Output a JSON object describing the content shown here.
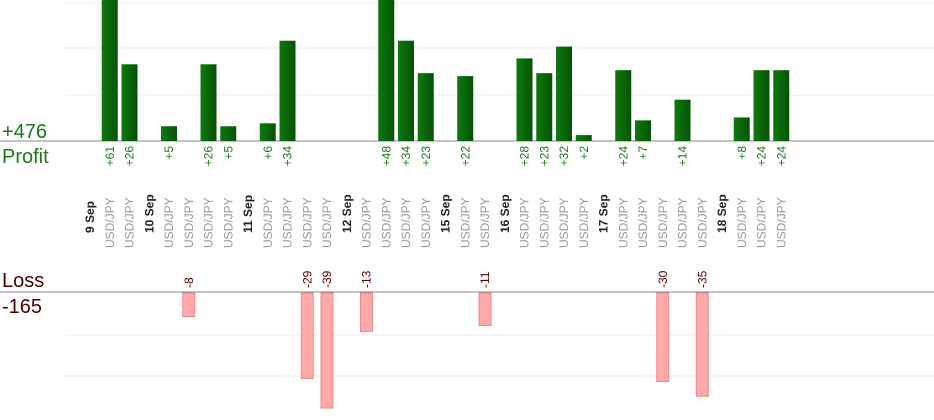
{
  "chart_data": {
    "type": "bar",
    "colors": {
      "profit": "#0a6a0a",
      "profit_text": "#1a7a1a",
      "loss": "#ffaaaa",
      "loss_edge": "#e88a8a",
      "loss_text": "#5a0000",
      "label_text": "#999999",
      "date_text": "#222222",
      "grid": "#eeeeee",
      "axis": "#888888"
    },
    "profit": {
      "title": "Profit",
      "total": "+476"
    },
    "loss": {
      "title": "Loss",
      "total": "-165"
    },
    "groups": [
      {
        "date": "9 Sep",
        "trades": [
          {
            "pair": "USD/JPY",
            "value": 61,
            "label": "+61"
          },
          {
            "pair": "USD/JPY",
            "value": 26,
            "label": "+26"
          }
        ]
      },
      {
        "date": "10 Sep",
        "trades": [
          {
            "pair": "USD/JPY",
            "value": 5,
            "label": "+5"
          },
          {
            "pair": "USD/JPY",
            "value": -8,
            "label": "-8"
          },
          {
            "pair": "USD/JPY",
            "value": 26,
            "label": "+26"
          },
          {
            "pair": "USD/JPY",
            "value": 5,
            "label": "+5"
          }
        ]
      },
      {
        "date": "11 Sep",
        "trades": [
          {
            "pair": "USD/JPY",
            "value": 6,
            "label": "+6"
          },
          {
            "pair": "USD/JPY",
            "value": 34,
            "label": "+34"
          },
          {
            "pair": "USD/JPY",
            "value": -29,
            "label": "-29"
          },
          {
            "pair": "USD/JPY",
            "value": -39,
            "label": "-39"
          }
        ]
      },
      {
        "date": "12 Sep",
        "trades": [
          {
            "pair": "USD/JPY",
            "value": -13,
            "label": "-13"
          },
          {
            "pair": "USD/JPY",
            "value": 48,
            "label": "+48"
          },
          {
            "pair": "USD/JPY",
            "value": 34,
            "label": "+34"
          },
          {
            "pair": "USD/JPY",
            "value": 23,
            "label": "+23"
          }
        ]
      },
      {
        "date": "15 Sep",
        "trades": [
          {
            "pair": "USD/JPY",
            "value": 22,
            "label": "+22"
          },
          {
            "pair": "USD/JPY",
            "value": -11,
            "label": "-11"
          }
        ]
      },
      {
        "date": "16 Sep",
        "trades": [
          {
            "pair": "USD/JPY",
            "value": 28,
            "label": "+28"
          },
          {
            "pair": "USD/JPY",
            "value": 23,
            "label": "+23"
          },
          {
            "pair": "USD/JPY",
            "value": 32,
            "label": "+32"
          },
          {
            "pair": "USD/JPY",
            "value": 2,
            "label": "+2"
          }
        ]
      },
      {
        "date": "17 Sep",
        "trades": [
          {
            "pair": "USD/JPY",
            "value": 24,
            "label": "+24"
          },
          {
            "pair": "USD/JPY",
            "value": 7,
            "label": "+7"
          },
          {
            "pair": "USD/JPY",
            "value": -30,
            "label": "-30"
          },
          {
            "pair": "USD/JPY",
            "value": 14,
            "label": "+14"
          },
          {
            "pair": "USD/JPY",
            "value": -35,
            "label": "-35"
          }
        ]
      },
      {
        "date": "18 Sep",
        "trades": [
          {
            "pair": "USD/JPY",
            "value": 8,
            "label": "+8"
          },
          {
            "pair": "USD/JPY",
            "value": 24,
            "label": "+24"
          },
          {
            "pair": "USD/JPY",
            "value": 24,
            "label": "+24"
          }
        ]
      }
    ]
  }
}
